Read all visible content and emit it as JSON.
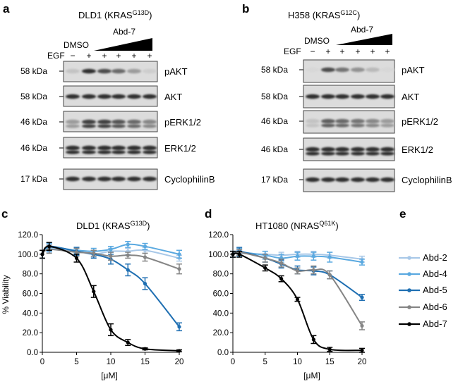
{
  "panels": {
    "a": "a",
    "b": "b",
    "c": "c",
    "d": "d",
    "e": "e"
  },
  "blot_a": {
    "title_main": "DLD1 (KRAS",
    "title_sup": "G13D",
    "title_end": ")",
    "dmso": "DMSO",
    "treatment": "Abd-7",
    "egf": "EGF",
    "egf_signs": [
      "−",
      "+",
      "+",
      "+",
      "+",
      "+"
    ],
    "rows": [
      {
        "kda": "58 kDa",
        "protein": "pAKT"
      },
      {
        "kda": "58 kDa",
        "protein": "AKT"
      },
      {
        "kda": "46 kDa",
        "protein": "pERK1/2"
      },
      {
        "kda": "46 kDa",
        "protein": "ERK1/2"
      },
      {
        "kda": "17 kDa",
        "protein": "CyclophilinB"
      }
    ]
  },
  "blot_b": {
    "title_main": "H358 (KRAS",
    "title_sup": "G12C",
    "title_end": ")",
    "dmso": "DMSO",
    "treatment": "Abd-7",
    "egf": "EGF",
    "egf_signs": [
      "−",
      "+",
      "+",
      "+",
      "+",
      "+"
    ],
    "rows": [
      {
        "kda": "58 kDa",
        "protein": "pAKT"
      },
      {
        "kda": "58 kDa",
        "protein": "AKT"
      },
      {
        "kda": "46 kDa",
        "protein": "pERK1/2"
      },
      {
        "kda": "46 kDa",
        "protein": "ERK1/2"
      },
      {
        "kda": "17 kDa",
        "protein": "CyclophilinB"
      }
    ]
  },
  "band_intensity": {
    "pAKT_a": [
      0.15,
      0.9,
      0.75,
      0.6,
      0.35,
      0.1
    ],
    "pAKT_b": [
      0.05,
      0.75,
      0.55,
      0.4,
      0.2,
      0.05
    ],
    "pERK_a": [
      0.35,
      0.8,
      0.8,
      0.7,
      0.6,
      0.45
    ],
    "pERK_b": [
      0.15,
      0.65,
      0.6,
      0.55,
      0.45,
      0.35
    ]
  },
  "legend": [
    {
      "name": "Abd-2",
      "color": "#a8c8e8"
    },
    {
      "name": "Abd-4",
      "color": "#5aa9e0"
    },
    {
      "name": "Abd-5",
      "color": "#1f6fb2"
    },
    {
      "name": "Abd-6",
      "color": "#858585"
    },
    {
      "name": "Abd-7",
      "color": "#000000"
    }
  ],
  "chart_data": [
    {
      "type": "line",
      "title_main": "DLD1 (KRAS",
      "title_sup": "G13D",
      "title_end": ")",
      "xlabel": "[μM]",
      "ylabel": "% Viability",
      "xlim": [
        0,
        20
      ],
      "ylim": [
        0,
        120
      ],
      "xticks": [
        "0",
        "5",
        "10",
        "15",
        "20"
      ],
      "yticks": [
        "0.0",
        "20.0",
        "40.0",
        "60.0",
        "80.0",
        "100.0",
        "120.0"
      ],
      "x": [
        0,
        1,
        5,
        7.5,
        10,
        12.5,
        15,
        20
      ],
      "series": [
        {
          "name": "Abd-2",
          "color": "#a8c8e8",
          "values": [
            100,
            106,
            103,
            100,
            103,
            103,
            104,
            96
          ],
          "errors": [
            4,
            4,
            4,
            3,
            3,
            3,
            3,
            3
          ]
        },
        {
          "name": "Abd-4",
          "color": "#5aa9e0",
          "values": [
            100,
            107,
            104,
            103,
            105,
            110,
            108,
            100
          ],
          "errors": [
            4,
            4,
            3,
            3,
            3,
            3,
            3,
            4
          ]
        },
        {
          "name": "Abd-5",
          "color": "#1f6fb2",
          "values": [
            100,
            108,
            103,
            100,
            95,
            84,
            70,
            26
          ],
          "errors": [
            4,
            4,
            4,
            4,
            5,
            6,
            6,
            4
          ]
        },
        {
          "name": "Abd-6",
          "color": "#858585",
          "values": [
            100,
            105,
            102,
            101,
            98,
            99,
            97,
            85
          ],
          "errors": [
            4,
            4,
            4,
            3,
            4,
            3,
            4,
            5
          ]
        },
        {
          "name": "Abd-7",
          "color": "#000000",
          "values": [
            100,
            108,
            96,
            62,
            23,
            10,
            3.5,
            1.5
          ],
          "errors": [
            4,
            4,
            4,
            6,
            6,
            3,
            1,
            1
          ]
        }
      ]
    },
    {
      "type": "line",
      "title_main": "HT1080 (NRAS",
      "title_sup": "Q61K",
      "title_end": ")",
      "xlabel": "[μM]",
      "ylabel": "",
      "xlim": [
        0,
        20
      ],
      "ylim": [
        0,
        120
      ],
      "xticks": [
        "0",
        "5",
        "10",
        "15",
        "20"
      ],
      "yticks": [
        "0.0",
        "20.0",
        "40.0",
        "60.0",
        "80.0",
        "100.0",
        "120.0"
      ],
      "x": [
        0,
        1,
        5,
        7.5,
        10,
        12.5,
        15,
        20
      ],
      "series": [
        {
          "name": "Abd-2",
          "color": "#a8c8e8",
          "values": [
            100,
            101,
            100,
            99,
            100,
            100,
            99,
            95
          ],
          "errors": [
            3,
            3,
            3,
            3,
            3,
            3,
            3,
            3
          ]
        },
        {
          "name": "Abd-4",
          "color": "#5aa9e0",
          "values": [
            100,
            102,
            99,
            96,
            98,
            98,
            97,
            92
          ],
          "errors": [
            3,
            4,
            4,
            4,
            4,
            4,
            5,
            3
          ]
        },
        {
          "name": "Abd-5",
          "color": "#1f6fb2",
          "values": [
            100,
            103,
            96,
            90,
            84,
            83,
            79,
            56
          ],
          "errors": [
            3,
            4,
            4,
            4,
            4,
            4,
            4,
            3
          ]
        },
        {
          "name": "Abd-6",
          "color": "#858585",
          "values": [
            100,
            102,
            96,
            91,
            83,
            84,
            79,
            27
          ],
          "errors": [
            3,
            3,
            4,
            4,
            3,
            4,
            4,
            4
          ]
        },
        {
          "name": "Abd-7",
          "color": "#000000",
          "values": [
            100,
            100,
            86,
            75,
            54,
            13,
            3,
            2
          ],
          "errors": [
            3,
            3,
            3,
            3,
            2,
            4,
            2,
            2
          ]
        }
      ]
    }
  ]
}
